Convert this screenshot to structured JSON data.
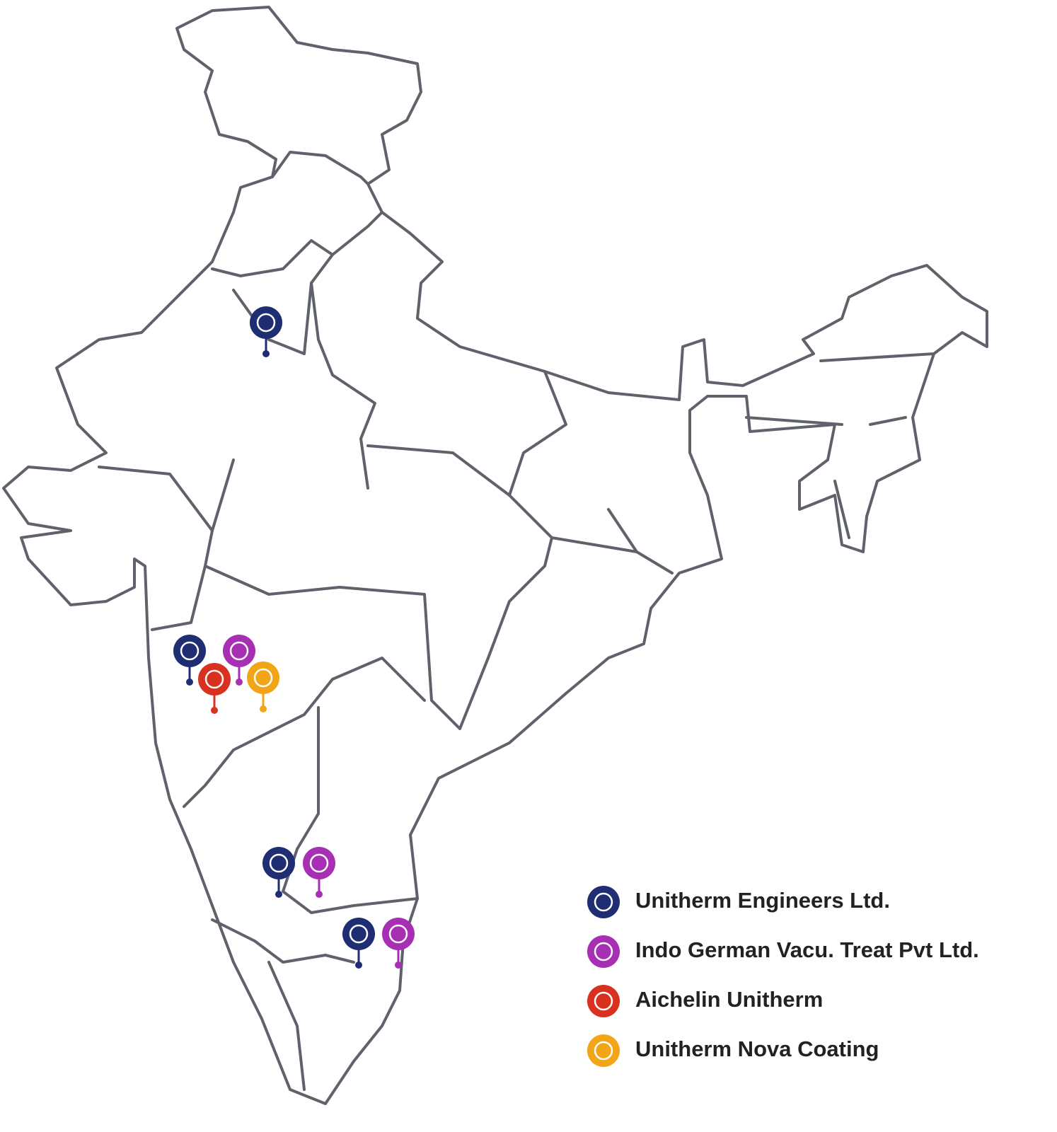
{
  "legend": [
    {
      "name": "Unitherm Engineers Ltd.",
      "color": "#1f2d73"
    },
    {
      "name": "Indo German Vacu. Treat Pvt Ltd.",
      "color": "#a62fb4"
    },
    {
      "name": "Aichelin Unitherm",
      "color": "#d9311f"
    },
    {
      "name": "Unitherm Nova Coating",
      "color": "#f2a516"
    }
  ]
}
